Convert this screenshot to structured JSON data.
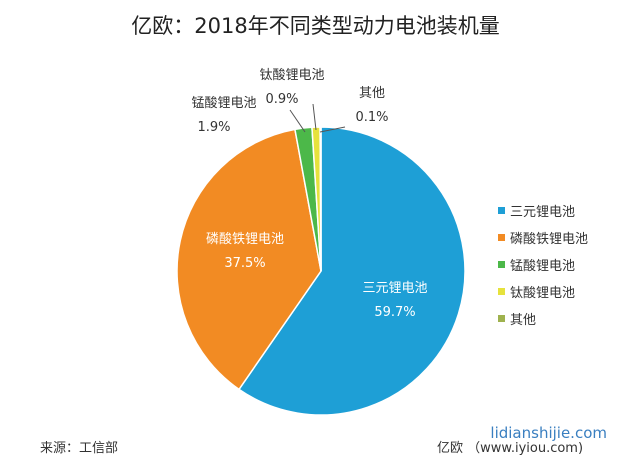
{
  "chart_data": {
    "type": "pie",
    "title": "亿欧：2018年不同类型动力电池装机量",
    "slices": [
      {
        "label": "三元锂电池",
        "value": 59.7,
        "value_label": "59.7%",
        "color": "#1e9fd6"
      },
      {
        "label": "磷酸铁锂电池",
        "value": 37.5,
        "value_label": "37.5%",
        "color": "#f28b23"
      },
      {
        "label": "锰酸锂电池",
        "value": 1.9,
        "value_label": "1.9%",
        "color": "#4cb849"
      },
      {
        "label": "钛酸锂电池",
        "value": 0.9,
        "value_label": "0.9%",
        "color": "#e6e23c"
      },
      {
        "label": "其他",
        "value": 0.1,
        "value_label": "0.1%",
        "color": "#9fb24e"
      }
    ],
    "legend_position": "right",
    "start_angle": "top, clockwise"
  },
  "footer": {
    "source": "来源：工信部",
    "credit": "亿欧 （www.iyiou.com)",
    "watermark": "lidianshijie.com"
  }
}
